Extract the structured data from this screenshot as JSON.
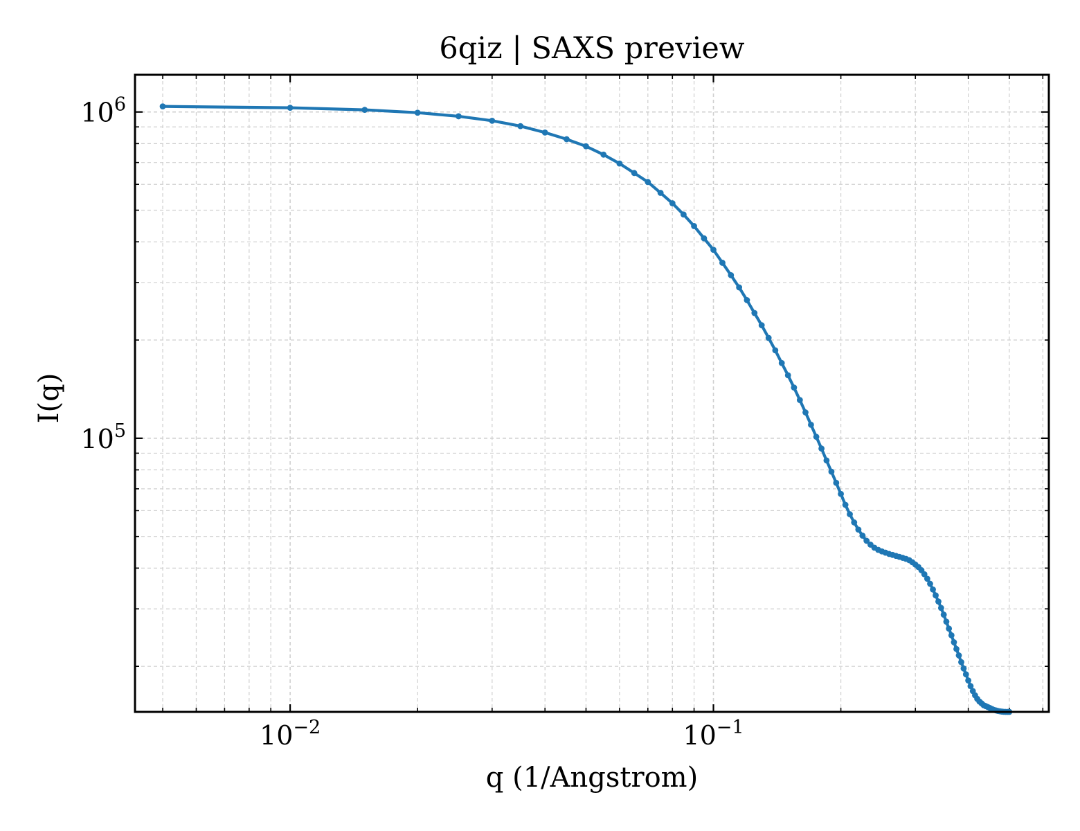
{
  "chart_data": {
    "type": "line",
    "title": "6qiz | SAXS preview",
    "xlabel": "q (1/Angstrom)",
    "ylabel": "I(q)",
    "xscale": "log",
    "yscale": "log",
    "xlim": [
      0.0043,
      0.62
    ],
    "ylim": [
      14500,
      1300000
    ],
    "grid": true,
    "legend": "none",
    "x_major_ticks": [
      {
        "value": 0.01,
        "base": "10",
        "exp": "−2"
      },
      {
        "value": 0.1,
        "base": "10",
        "exp": "−1"
      }
    ],
    "y_major_ticks": [
      {
        "value": 100000,
        "base": "10",
        "exp": "5"
      },
      {
        "value": 1000000,
        "base": "10",
        "exp": "6"
      }
    ],
    "series": [
      {
        "color": "#1f77b4",
        "points": [
          [
            0.005,
            1040000
          ],
          [
            0.01,
            1030000
          ],
          [
            0.015,
            1015000
          ],
          [
            0.02,
            995000
          ],
          [
            0.025,
            970000
          ],
          [
            0.03,
            940000
          ],
          [
            0.035,
            905000
          ],
          [
            0.04,
            865000
          ],
          [
            0.045,
            825000
          ],
          [
            0.05,
            785000
          ],
          [
            0.055,
            740000
          ],
          [
            0.06,
            695000
          ],
          [
            0.065,
            650000
          ],
          [
            0.07,
            610000
          ],
          [
            0.075,
            565000
          ],
          [
            0.08,
            525000
          ],
          [
            0.085,
            485000
          ],
          [
            0.09,
            447000
          ],
          [
            0.095,
            410000
          ],
          [
            0.1,
            378000
          ],
          [
            0.105,
            345000
          ],
          [
            0.11,
            316000
          ],
          [
            0.115,
            290000
          ],
          [
            0.12,
            265000
          ],
          [
            0.125,
            242000
          ],
          [
            0.13,
            222000
          ],
          [
            0.135,
            203000
          ],
          [
            0.14,
            186000
          ],
          [
            0.145,
            170000
          ],
          [
            0.15,
            156000
          ],
          [
            0.155,
            143000
          ],
          [
            0.16,
            131000
          ],
          [
            0.165,
            120000
          ],
          [
            0.17,
            110000
          ],
          [
            0.175,
            101000
          ],
          [
            0.18,
            93000
          ],
          [
            0.185,
            85500
          ],
          [
            0.19,
            79000
          ],
          [
            0.195,
            73000
          ],
          [
            0.2,
            67500
          ],
          [
            0.205,
            62500
          ],
          [
            0.21,
            58500
          ],
          [
            0.215,
            55200
          ],
          [
            0.22,
            52500
          ],
          [
            0.225,
            50300
          ],
          [
            0.23,
            48500
          ],
          [
            0.235,
            47200
          ],
          [
            0.24,
            46200
          ],
          [
            0.245,
            45500
          ],
          [
            0.25,
            45000
          ],
          [
            0.255,
            44600
          ],
          [
            0.26,
            44200
          ],
          [
            0.265,
            43900
          ],
          [
            0.27,
            43600
          ],
          [
            0.275,
            43300
          ],
          [
            0.28,
            43000
          ],
          [
            0.285,
            42700
          ],
          [
            0.29,
            42300
          ],
          [
            0.295,
            41700
          ],
          [
            0.3,
            41000
          ],
          [
            0.305,
            40300
          ],
          [
            0.31,
            39400
          ],
          [
            0.315,
            38300
          ],
          [
            0.32,
            37100
          ],
          [
            0.325,
            35800
          ],
          [
            0.33,
            34400
          ],
          [
            0.335,
            33000
          ],
          [
            0.34,
            31600
          ],
          [
            0.345,
            30200
          ],
          [
            0.35,
            28800
          ],
          [
            0.355,
            27400
          ],
          [
            0.36,
            26100
          ],
          [
            0.365,
            24900
          ],
          [
            0.37,
            23700
          ],
          [
            0.375,
            22600
          ],
          [
            0.38,
            21600
          ],
          [
            0.385,
            20600
          ],
          [
            0.39,
            19700
          ],
          [
            0.395,
            18900
          ],
          [
            0.4,
            18100
          ],
          [
            0.405,
            17400
          ],
          [
            0.41,
            16800
          ],
          [
            0.415,
            16300
          ],
          [
            0.42,
            15900
          ],
          [
            0.425,
            15600
          ],
          [
            0.43,
            15400
          ],
          [
            0.435,
            15200
          ],
          [
            0.44,
            15100
          ],
          [
            0.445,
            15000
          ],
          [
            0.45,
            14900
          ],
          [
            0.455,
            14800
          ],
          [
            0.46,
            14700
          ],
          [
            0.465,
            14650
          ],
          [
            0.47,
            14600
          ],
          [
            0.475,
            14560
          ],
          [
            0.48,
            14530
          ],
          [
            0.485,
            14510
          ],
          [
            0.49,
            14500
          ],
          [
            0.495,
            14500
          ],
          [
            0.5,
            14500
          ]
        ]
      }
    ]
  }
}
